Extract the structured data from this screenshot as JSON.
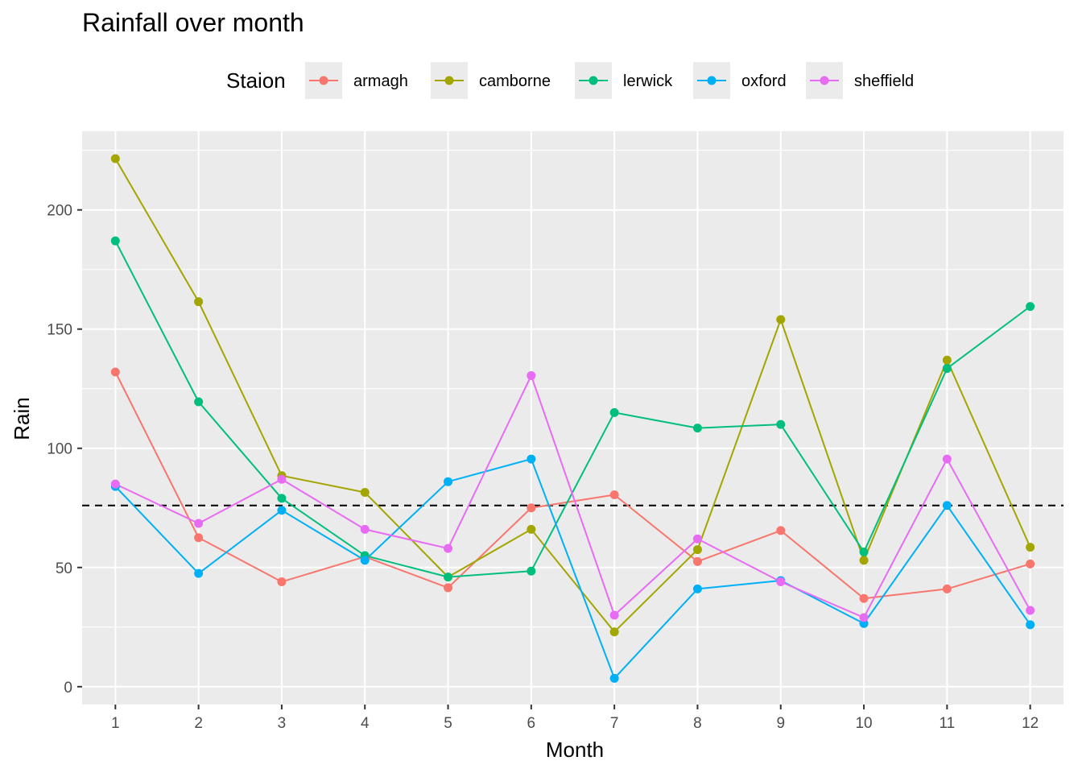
{
  "chart_data": {
    "type": "line",
    "title": "Rainfall over month",
    "xlabel": "Month",
    "ylabel": "Rain",
    "legend_title": "Staion",
    "legend_position": "top",
    "grid": true,
    "xlim": [
      0.6,
      12.4
    ],
    "ylim": [
      -7.5,
      233
    ],
    "x": [
      1,
      2,
      3,
      4,
      5,
      6,
      7,
      8,
      9,
      10,
      11,
      12
    ],
    "x_ticks": [
      "1",
      "2",
      "3",
      "4",
      "5",
      "6",
      "7",
      "8",
      "9",
      "10",
      "11",
      "12"
    ],
    "y_ticks": [
      0,
      50,
      100,
      150,
      200
    ],
    "y_tick_labels": [
      "0",
      "50",
      "100",
      "150",
      "200"
    ],
    "reference_line": {
      "y": 76,
      "style": "dashed",
      "color": "#000000"
    },
    "series": [
      {
        "name": "armagh",
        "color": "#F8766D",
        "values": [
          132,
          62.5,
          44,
          54.5,
          41.5,
          75,
          80.5,
          52.5,
          65.5,
          37,
          41,
          51.5
        ]
      },
      {
        "name": "camborne",
        "color": "#A3A500",
        "values": [
          221.5,
          161.5,
          88.5,
          81.5,
          46,
          66,
          23,
          57.5,
          154,
          53,
          137,
          58.5
        ]
      },
      {
        "name": "lerwick",
        "color": "#00BF7D",
        "values": [
          187,
          119.5,
          79,
          55,
          46,
          48.5,
          115,
          108.5,
          110,
          56.5,
          133.5,
          159.5
        ]
      },
      {
        "name": "oxford",
        "color": "#00B0F6",
        "values": [
          84,
          47.5,
          74,
          53,
          86,
          95.5,
          3.5,
          41,
          44.5,
          26.5,
          76,
          26
        ]
      },
      {
        "name": "sheffield",
        "color": "#E76BF3",
        "values": [
          85,
          68.5,
          87,
          66,
          58,
          130.5,
          30,
          62,
          44,
          29,
          95.5,
          32
        ]
      }
    ]
  }
}
